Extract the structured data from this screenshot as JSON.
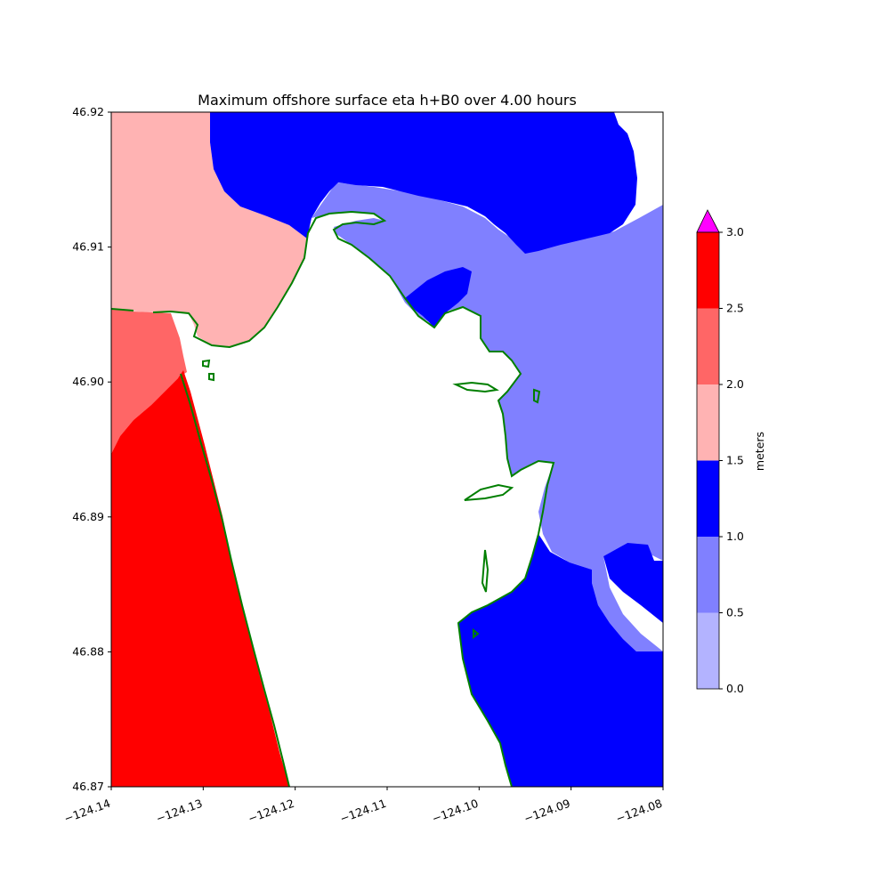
{
  "title": "Maximum offshore surface eta h+B0 over 4.00 hours",
  "chart_data": {
    "type": "heatmap",
    "title": "Maximum offshore surface eta h+B0 over 4.00 hours",
    "xlim": [
      -124.14,
      -124.08
    ],
    "ylim": [
      46.87,
      46.92
    ],
    "x_ticks": [
      "−124.14",
      "−124.13",
      "−124.12",
      "−124.11",
      "−124.10",
      "−124.09",
      "−124.08"
    ],
    "y_ticks": [
      "46.87",
      "46.88",
      "46.89",
      "46.90",
      "46.91",
      "46.92"
    ],
    "colorbar": {
      "label": "meters",
      "ticks": [
        "0.0",
        "0.5",
        "1.0",
        "1.5",
        "2.0",
        "2.5",
        "3.0"
      ],
      "levels": [
        0.0,
        0.5,
        1.0,
        1.5,
        2.0,
        2.5,
        3.0
      ],
      "colors": [
        "#b3b3ff",
        "#8080ff",
        "#0000ff",
        "#ffb3b3",
        "#ff6666",
        "#ff0000"
      ],
      "extend_color": "#ff00ff",
      "extend": "max"
    },
    "shoreline_color": "#007f00",
    "land_color": "#ffffff",
    "regions": [
      {
        "range": "1.0–1.5",
        "color": "#0000ff",
        "area": "northern bay channel, southeastern bay"
      },
      {
        "range": "0.5–1.0",
        "color": "#8080ff",
        "area": "central-east bay"
      },
      {
        "range": "1.5–2.0",
        "color": "#ffb3b3",
        "area": "northwest offshore"
      },
      {
        "range": "2.0–2.5",
        "color": "#ff6666",
        "area": "west offshore band"
      },
      {
        "range": "2.5–3.0",
        "color": "#ff0000",
        "area": "southwest offshore"
      }
    ]
  }
}
